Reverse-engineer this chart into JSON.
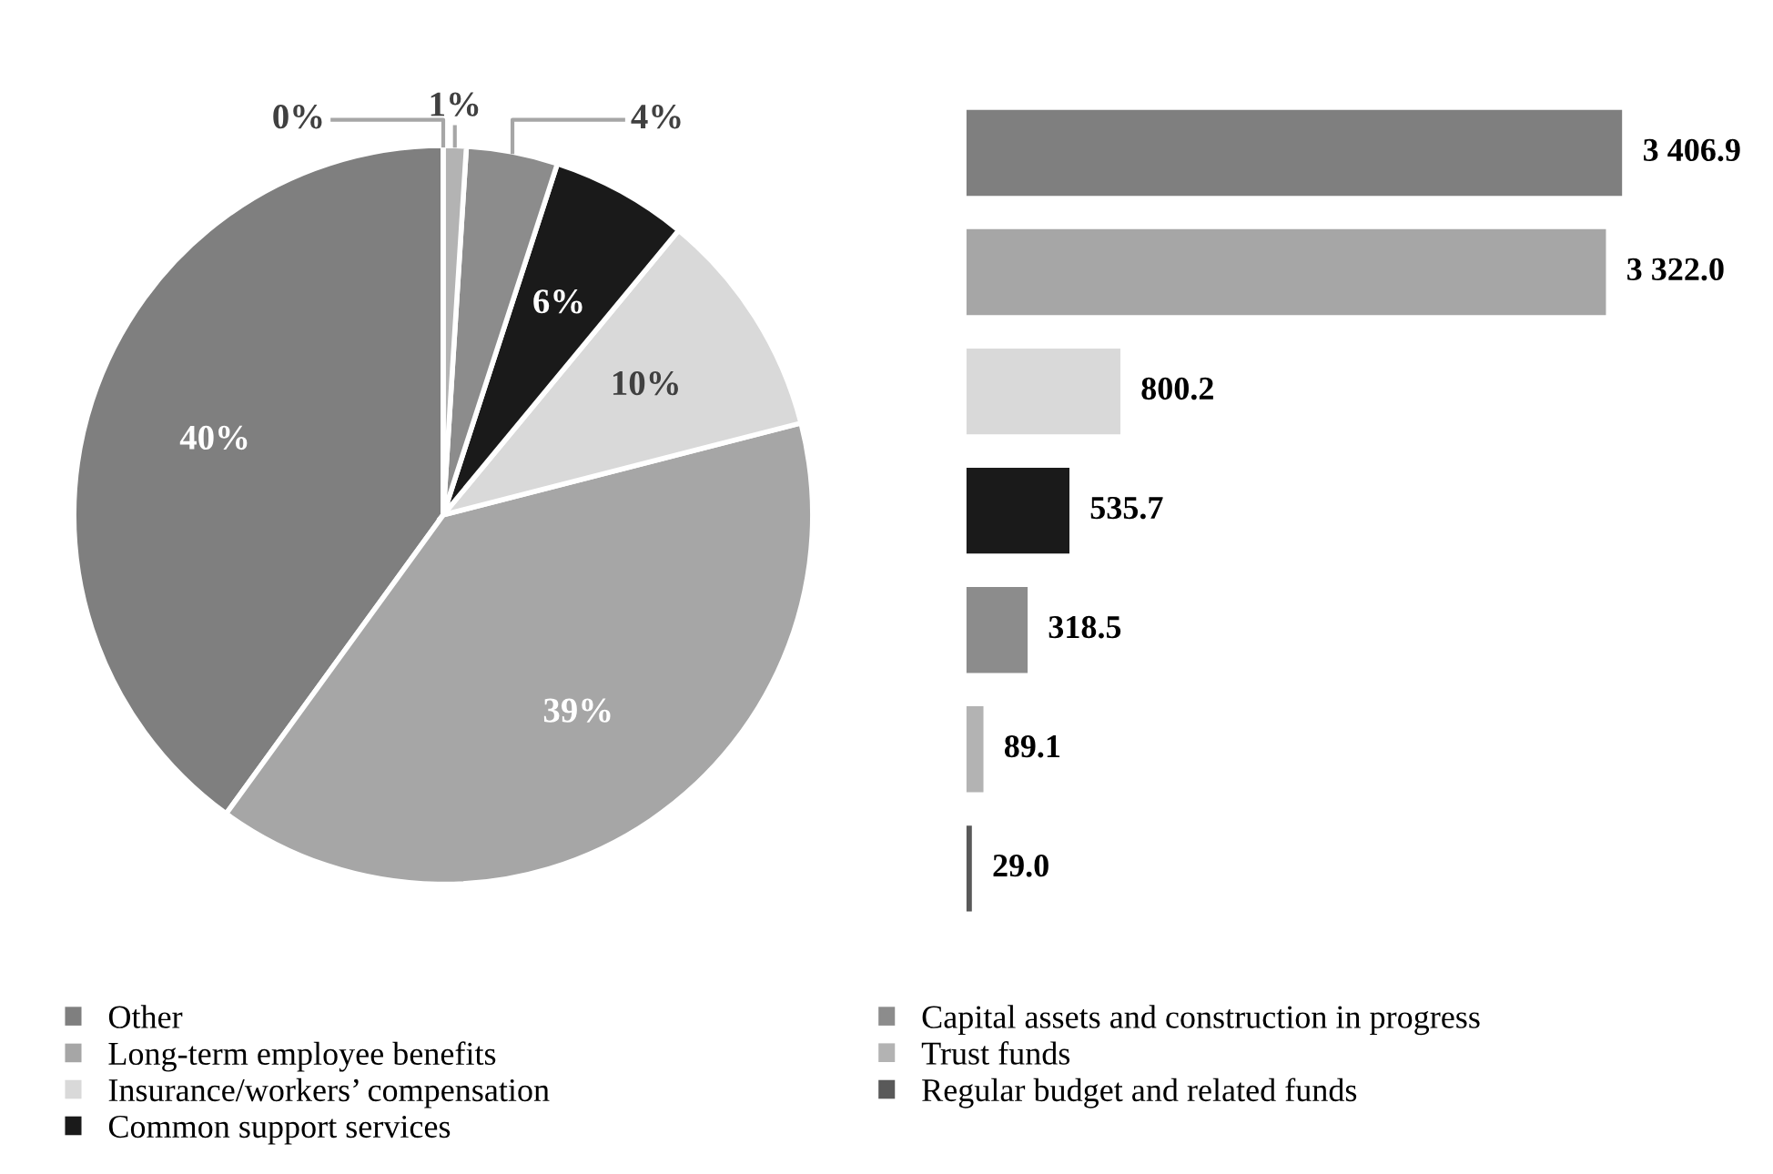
{
  "chart_data": [
    {
      "type": "pie",
      "categories": [
        "Other",
        "Long-term employee benefits",
        "Insurance/workers’ compensation",
        "Common support services",
        "Capital assets and construction in progress",
        "Trust funds",
        "Regular budget and related funds"
      ],
      "values": [
        40,
        39,
        10,
        6,
        4,
        1,
        0
      ],
      "colors": [
        "#7f7f7f",
        "#a6a6a6",
        "#d9d9d9",
        "#1a1a1a",
        "#8c8c8c",
        "#b3b3b3",
        "#595959"
      ],
      "value_labels": [
        "40%",
        "39%",
        "10%",
        "6%",
        "4%",
        "1%",
        "0%"
      ],
      "legend": "bottom"
    },
    {
      "type": "bar",
      "orientation": "horizontal",
      "categories": [
        null,
        null,
        null,
        null,
        null,
        null,
        null
      ],
      "values": [
        3406.9,
        3322.0,
        800.2,
        535.7,
        318.5,
        89.1,
        29.0
      ],
      "colors": [
        "#7f7f7f",
        "#a6a6a6",
        "#d9d9d9",
        "#1a1a1a",
        "#8c8c8c",
        "#b3b3b3",
        "#595959"
      ],
      "value_labels": [
        "3 406.9",
        "3 322.0",
        "800.2",
        "535.7",
        "318.5",
        "89.1",
        "29.0"
      ]
    }
  ]
}
